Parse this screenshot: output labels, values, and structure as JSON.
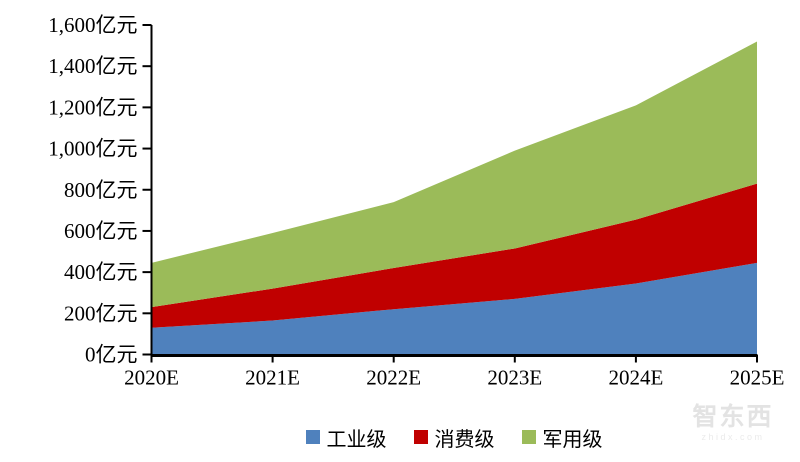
{
  "chart_data": {
    "type": "area",
    "stacked": true,
    "title": "",
    "unit": "亿元",
    "grid": false,
    "legend_position": "bottom",
    "categories": [
      "2020E",
      "2021E",
      "2022E",
      "2023E",
      "2024E",
      "2025E"
    ],
    "series": [
      {
        "id": "industrial",
        "name": "工业级",
        "color": "#4F81BD",
        "values": [
          130,
          165,
          220,
          270,
          345,
          445
        ]
      },
      {
        "id": "consumer",
        "name": "消费级",
        "color": "#C00000",
        "values": [
          100,
          155,
          200,
          245,
          310,
          385
        ]
      },
      {
        "id": "military",
        "name": "军用级",
        "color": "#9BBB59",
        "values": [
          215,
          270,
          320,
          475,
          555,
          690
        ]
      }
    ],
    "stacked_totals": [
      445,
      590,
      740,
      990,
      1210,
      1520
    ],
    "y_axis": {
      "min": 0,
      "max": 1600,
      "step": 200,
      "tick_labels": [
        "0亿元",
        "200亿元",
        "400亿元",
        "600亿元",
        "800亿元",
        "1,000亿元",
        "1,200亿元",
        "1,400亿元",
        "1,600亿元"
      ]
    },
    "axis_color": "#000000"
  },
  "watermark": {
    "title": "智东西",
    "subtitle": "zhidx.com"
  }
}
